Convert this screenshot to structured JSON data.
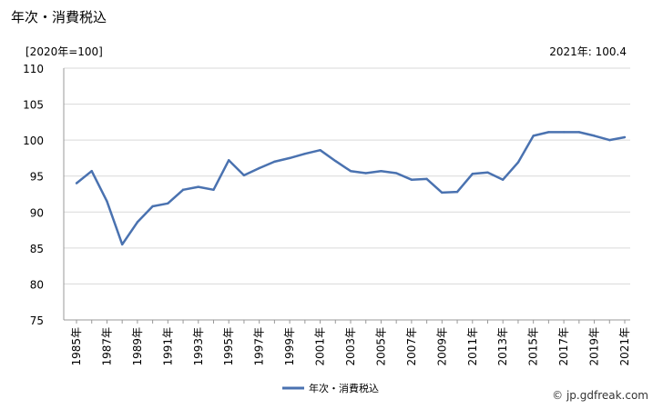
{
  "header": {
    "title": "年次・消費税込",
    "unit": "[2020年=100]",
    "latest": "2021年: 100.4"
  },
  "footer": {
    "credit": "© jp.gdfreak.com"
  },
  "chart_data": {
    "type": "line",
    "title": "年次・消費税込",
    "ylabel": "[2020年=100]",
    "xlabel": "",
    "ylim": [
      75,
      110
    ],
    "yticks": [
      75,
      80,
      85,
      90,
      95,
      100,
      105,
      110
    ],
    "grid": "horizontal",
    "legend_position": "bottom",
    "x_tick_labels": [
      "1985年",
      "1987年",
      "1989年",
      "1991年",
      "1993年",
      "1995年",
      "1997年",
      "1999年",
      "2001年",
      "2003年",
      "2005年",
      "2007年",
      "2009年",
      "2011年",
      "2013年",
      "2015年",
      "2017年",
      "2019年",
      "2021年"
    ],
    "x": [
      "1985",
      "1986",
      "1987",
      "1988",
      "1989",
      "1990",
      "1991",
      "1992",
      "1993",
      "1994",
      "1995",
      "1996",
      "1997",
      "1998",
      "1999",
      "2000",
      "2001",
      "2002",
      "2003",
      "2004",
      "2005",
      "2006",
      "2007",
      "2008",
      "2009",
      "2010",
      "2011",
      "2012",
      "2013",
      "2014",
      "2015",
      "2016",
      "2017",
      "2018",
      "2019",
      "2020",
      "2021"
    ],
    "series": [
      {
        "name": "年次・消費税込",
        "color": "#4a72b0",
        "values": [
          94.0,
          95.7,
          91.5,
          85.5,
          88.6,
          90.8,
          91.2,
          93.1,
          93.5,
          93.1,
          97.2,
          95.1,
          96.1,
          97.0,
          97.5,
          98.1,
          98.6,
          97.1,
          95.7,
          95.4,
          95.7,
          95.4,
          94.5,
          94.6,
          92.7,
          92.8,
          95.3,
          95.5,
          94.5,
          96.9,
          100.6,
          101.1,
          101.1,
          101.1,
          100.6,
          100.0,
          100.4
        ]
      }
    ]
  }
}
